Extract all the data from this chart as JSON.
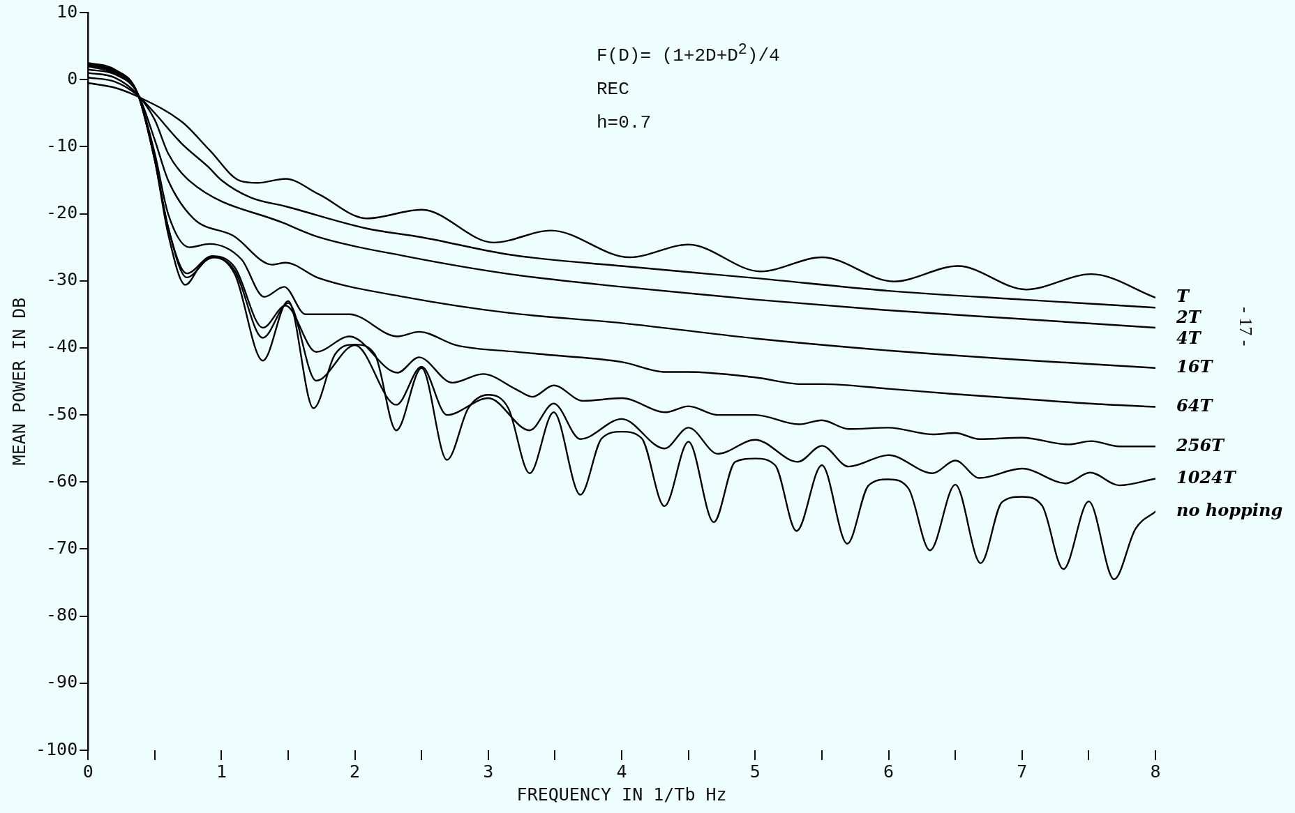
{
  "chart_data": {
    "type": "line",
    "xlabel": "FREQUENCY IN 1/Tb Hz",
    "ylabel": "MEAN POWER IN DB",
    "annotations": [
      "F(D)= (1+2D+D$^{2}$)/4",
      "REC",
      "h=0.7",
      "- 17 -"
    ],
    "xlim": [
      0,
      8
    ],
    "ylim": [
      -100,
      10
    ],
    "xticks": [
      0,
      {
        "value": 0.5,
        "label": null
      },
      1,
      {
        "value": 1.5,
        "label": null
      },
      2,
      {
        "value": 2.5,
        "label": null
      },
      3,
      {
        "value": 3.5,
        "label": null
      },
      4,
      {
        "value": 4.5,
        "label": null
      },
      5,
      {
        "value": 5.5,
        "label": null
      },
      6,
      {
        "value": 6.5,
        "label": null
      },
      7,
      {
        "value": 7.5,
        "label": null
      },
      8
    ],
    "yticks": [
      -100,
      -90,
      -80,
      -70,
      -60,
      -50,
      -40,
      -30,
      -20,
      -10,
      0,
      10
    ],
    "grid": false,
    "legend": false,
    "marker": "none",
    "line_style": "solid",
    "series": [
      {
        "name": "T",
        "color": "#000000",
        "x": [
          0,
          0.2,
          0.37,
          0.71,
          0.91,
          1.14,
          1.27,
          1.48,
          1.73,
          2.09,
          2.5,
          3.04,
          3.47,
          4.06,
          4.5,
          5.04,
          5.5,
          6.04,
          6.52,
          7.03,
          7.52,
          8
        ],
        "values": [
          -0.5,
          -1.2,
          -2.5,
          -6.4,
          -10.5,
          -15.1,
          -15.4,
          -14.8,
          -17.1,
          -20.7,
          -19.4,
          -24.3,
          -22.5,
          -26.5,
          -24.6,
          -28.6,
          -26.5,
          -30.1,
          -27.8,
          -31.3,
          -29,
          -32.5
        ]
      },
      {
        "name": "2T",
        "color": "#000000",
        "x": [
          0,
          0.2,
          0.37,
          0.5,
          0.7,
          0.9,
          1,
          1.22,
          1.48,
          2.09,
          2.5,
          3.16,
          4,
          5,
          6,
          7,
          8
        ],
        "values": [
          0.3,
          -0.3,
          -2.3,
          -5,
          -9.5,
          -13,
          -15,
          -17.6,
          -18.9,
          -22.2,
          -23.5,
          -26.1,
          -27.8,
          -29.6,
          -31.5,
          -32.8,
          -34
        ]
      },
      {
        "name": "4T",
        "color": "#000000",
        "x": [
          0,
          0.2,
          0.37,
          0.5,
          0.6,
          0.76,
          1.48,
          1.73,
          2.37,
          3.16,
          4,
          5,
          6,
          7,
          8
        ],
        "values": [
          1,
          0.3,
          -2.2,
          -6,
          -11,
          -15.1,
          -21.5,
          -23.5,
          -26.3,
          -29,
          -30.9,
          -32.8,
          -34.4,
          -35.7,
          -37
        ]
      },
      {
        "name": "16T",
        "color": "#000000",
        "x": [
          0,
          0.2,
          0.37,
          0.5,
          0.6,
          0.79,
          1.09,
          1.38,
          1.48,
          1.73,
          2.37,
          3.16,
          4,
          5,
          6,
          6.33,
          7,
          8
        ],
        "values": [
          1.5,
          0.8,
          -2,
          -9,
          -15,
          -20.7,
          -23.3,
          -27.6,
          -27.3,
          -29.6,
          -32.4,
          -34.8,
          -36.3,
          -38.6,
          -40.4,
          -40.9,
          -41.8,
          -43
        ]
      },
      {
        "name": "64T",
        "color": "#000000",
        "x": [
          0,
          0.2,
          0.37,
          0.5,
          0.6,
          0.76,
          0.91,
          1.15,
          1.32,
          1.47,
          1.63,
          1.96,
          2.32,
          2.48,
          2.76,
          3.21,
          3.49,
          4,
          4.33,
          4.5,
          5,
          5.35,
          5.5,
          6,
          6.5,
          7,
          7.5,
          8
        ],
        "values": [
          2,
          0.9,
          -2,
          -11,
          -20,
          -25,
          -24.5,
          -26.8,
          -32.4,
          -30.9,
          -35,
          -35,
          -38.3,
          -37.6,
          -39.6,
          -40.6,
          -41.1,
          -42.1,
          -43.6,
          -43.6,
          -44.4,
          -45.4,
          -45.4,
          -46.1,
          -46.9,
          -47.6,
          -48.3,
          -48.8
        ]
      },
      {
        "name": "256T",
        "color": "#000000",
        "x": [
          0,
          0.2,
          0.37,
          0.5,
          0.6,
          0.74,
          0.93,
          1.1,
          1.31,
          1.48,
          1.71,
          1.96,
          2.32,
          2.48,
          2.73,
          2.96,
          3.21,
          3.33,
          3.49,
          3.71,
          4,
          4.33,
          4.5,
          4.72,
          5,
          5.33,
          5.5,
          5.7,
          6,
          6.33,
          6.5,
          6.68,
          7,
          7.35,
          7.52,
          7.73,
          8
        ],
        "values": [
          2.2,
          1.1,
          -2,
          -12,
          -22,
          -28.9,
          -26.3,
          -28,
          -37,
          -33.7,
          -40.6,
          -38.3,
          -43.7,
          -41.4,
          -45.2,
          -43.9,
          -46.2,
          -47.3,
          -45.6,
          -47.9,
          -47.5,
          -49.6,
          -48.7,
          -50,
          -50,
          -51.4,
          -50.8,
          -52.1,
          -51.9,
          -52.9,
          -52.7,
          -53.6,
          -53.4,
          -54.4,
          -53.9,
          -54.7,
          -54.7
        ]
      },
      {
        "name": "1024T",
        "color": "#000000",
        "x": [
          0,
          0.2,
          0.37,
          0.5,
          0.6,
          0.74,
          0.93,
          1.1,
          1.31,
          1.5,
          1.71,
          2,
          2.31,
          2.5,
          2.69,
          3,
          3.31,
          3.49,
          3.69,
          4,
          4.32,
          4.5,
          4.72,
          5,
          5.32,
          5.5,
          5.7,
          6,
          6.33,
          6.5,
          6.68,
          7,
          7.33,
          7.51,
          7.73,
          8
        ],
        "values": [
          2.3,
          1.3,
          -2,
          -12,
          -22,
          -29.5,
          -26.5,
          -28.5,
          -38.5,
          -33.3,
          -44.9,
          -39.6,
          -48.5,
          -42.8,
          -50,
          -47.5,
          -52.3,
          -48.3,
          -53.6,
          -50.6,
          -55,
          -51.9,
          -55.8,
          -53.7,
          -57,
          -54.6,
          -57.7,
          -56,
          -58.7,
          -56.8,
          -59.4,
          -58,
          -60.2,
          -58.6,
          -60.5,
          -59.5
        ]
      },
      {
        "name": "no hopping",
        "color": "#000000",
        "x": [
          0,
          0.2,
          0.37,
          0.5,
          0.6,
          0.73,
          0.85,
          0.95,
          1.1,
          1.31,
          1.5,
          1.69,
          1.85,
          2,
          2.15,
          2.31,
          2.5,
          2.69,
          2.85,
          3,
          3.15,
          3.31,
          3.49,
          3.69,
          3.85,
          4,
          4.15,
          4.32,
          4.5,
          4.69,
          4.85,
          5,
          5.15,
          5.31,
          5.5,
          5.69,
          5.85,
          6,
          6.15,
          6.31,
          6.5,
          6.69,
          6.85,
          7,
          7.15,
          7.31,
          7.5,
          7.69,
          7.85,
          8
        ],
        "values": [
          2.5,
          1.5,
          -2,
          -12,
          -23,
          -30.6,
          -27.5,
          -26.5,
          -29,
          -41.9,
          -33,
          -49,
          -41,
          -39.5,
          -41,
          -52.3,
          -43,
          -56.7,
          -49,
          -47,
          -49,
          -58.7,
          -49.6,
          -61.9,
          -53.5,
          -52.5,
          -53.5,
          -63.6,
          -54,
          -66,
          -57,
          -56.5,
          -57.5,
          -67.3,
          -57.5,
          -69.2,
          -60.5,
          -59.6,
          -61,
          -70.2,
          -60.4,
          -72.1,
          -63,
          -62.2,
          -63.5,
          -73,
          -62.9,
          -74.5,
          -67,
          -64.4
        ]
      }
    ]
  }
}
